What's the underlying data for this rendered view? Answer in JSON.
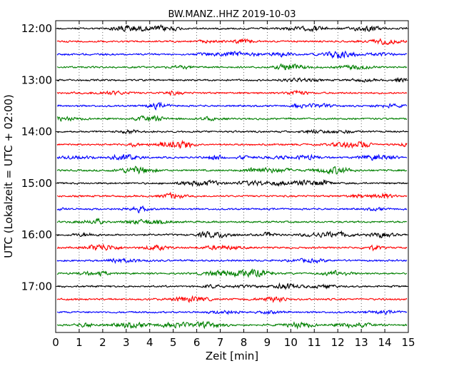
{
  "chart_data": {
    "type": "line",
    "title": "BW.MANZ..HHZ 2019-10-03",
    "xlabel": "Zeit  [min]",
    "ylabel": "UTC (Lokalzeit = UTC + 02:00)",
    "xlim": [
      0,
      15
    ],
    "x_ticks": [
      0,
      1,
      2,
      3,
      4,
      5,
      6,
      7,
      8,
      9,
      10,
      11,
      12,
      13,
      14,
      15
    ],
    "x_tick_labels": [
      "0",
      "1",
      "2",
      "3",
      "4",
      "5",
      "6",
      "7",
      "8",
      "9",
      "10",
      "11",
      "12",
      "13",
      "14",
      "15"
    ],
    "y_tick_labels": [
      "12:00",
      "13:00",
      "14:00",
      "15:00",
      "16:00",
      "17:00"
    ],
    "grid": {
      "x": "dotted-vertical",
      "y": false
    },
    "colors": [
      "#000000",
      "#ff0000",
      "#0000ff",
      "#008000"
    ],
    "trace_count": 24,
    "trace_minutes": 15,
    "traces_per_hour": 4
  }
}
